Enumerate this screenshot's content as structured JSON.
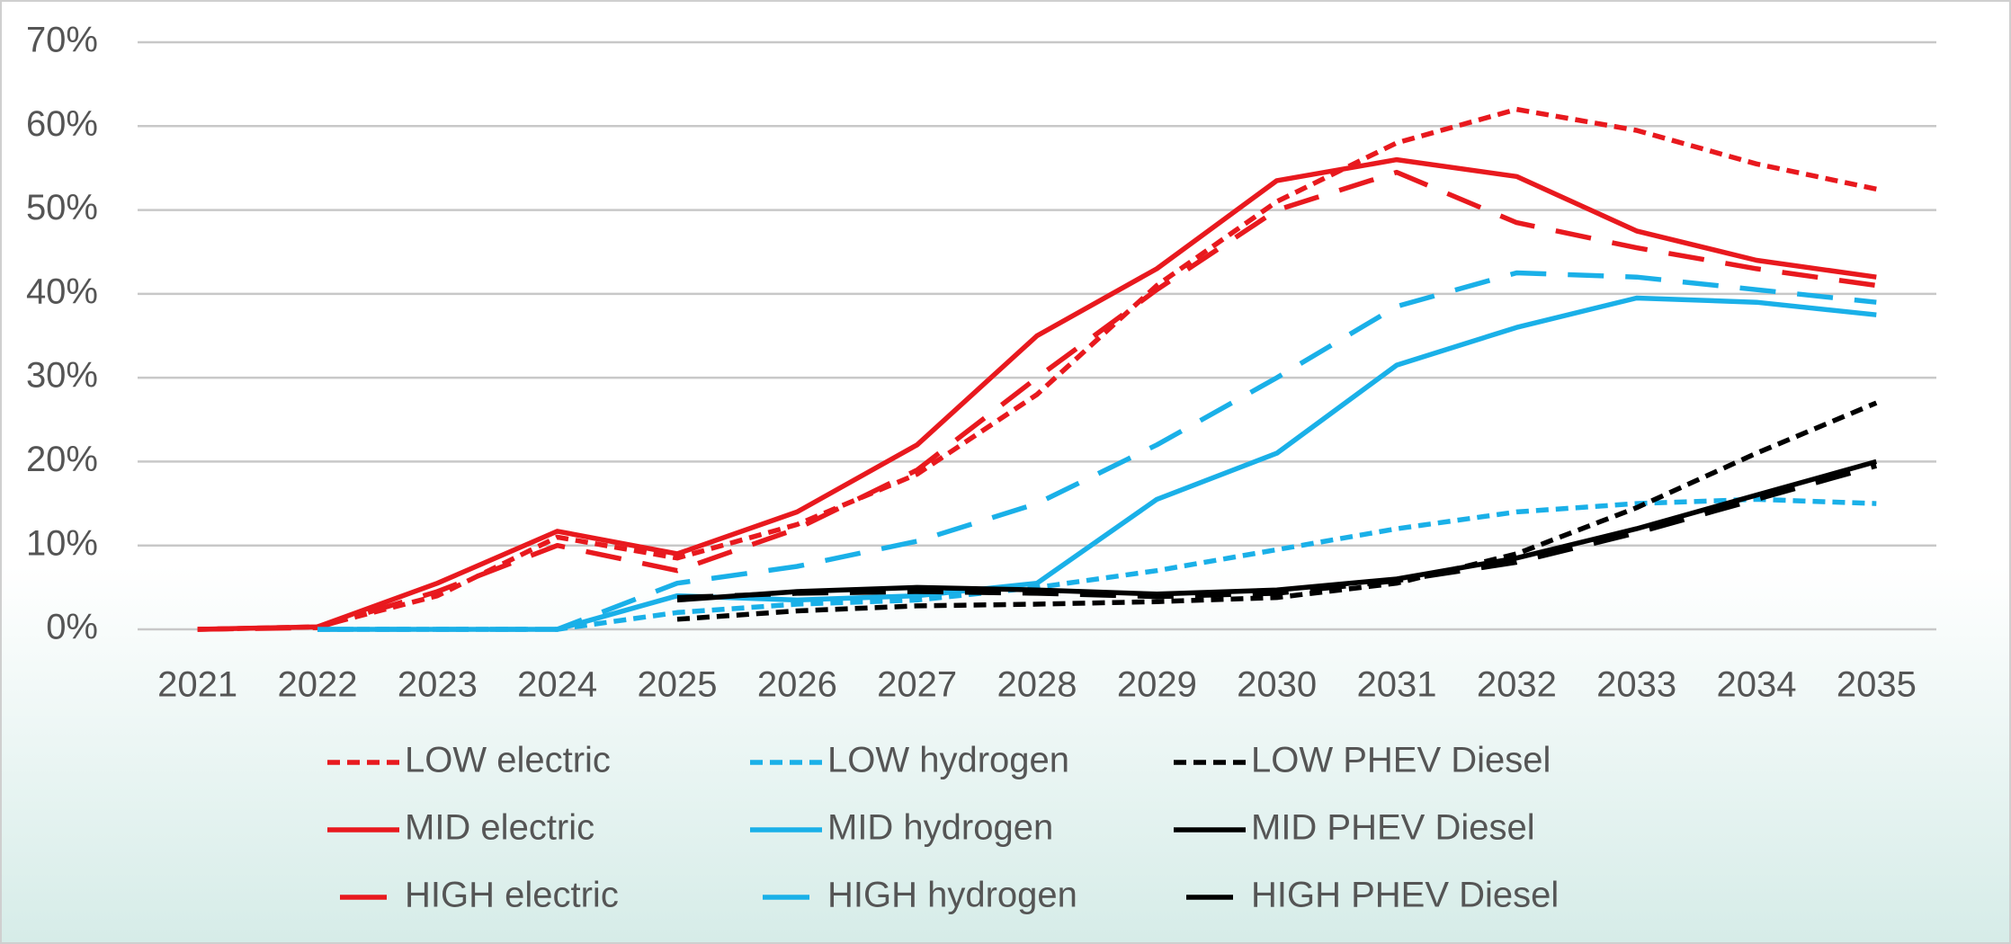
{
  "chart_data": {
    "type": "line",
    "categories": [
      "2021",
      "2022",
      "2023",
      "2024",
      "2025",
      "2026",
      "2027",
      "2028",
      "2029",
      "2030",
      "2031",
      "2032",
      "2033",
      "2034",
      "2035"
    ],
    "ylim": [
      0,
      70
    ],
    "yticks": [
      {
        "value": 0,
        "label": "0%"
      },
      {
        "value": 10,
        "label": "10%"
      },
      {
        "value": 20,
        "label": "20%"
      },
      {
        "value": 30,
        "label": "30%"
      },
      {
        "value": 40,
        "label": "40%"
      },
      {
        "value": 50,
        "label": "50%"
      },
      {
        "value": 60,
        "label": "60%"
      },
      {
        "value": 70,
        "label": "70%"
      }
    ],
    "grid": true,
    "legend": "bottom",
    "series": [
      {
        "name": "LOW electric",
        "color": "#e8191e",
        "dash": "short-dash",
        "values": [
          0,
          0.3,
          4,
          11,
          8.5,
          12.5,
          18.5,
          28,
          41,
          51,
          58,
          62,
          59.5,
          55.5,
          52.5
        ]
      },
      {
        "name": "LOW hydrogen",
        "color": "#1ab0e8",
        "dash": "short-dash",
        "values": [
          null,
          0,
          0,
          0,
          2,
          3,
          3.5,
          5,
          7,
          9.5,
          12,
          14,
          15,
          15.5,
          15
        ]
      },
      {
        "name": "LOW PHEV Diesel",
        "color": "#000000",
        "dash": "short-dash",
        "values": [
          null,
          null,
          null,
          null,
          1.2,
          2.2,
          2.8,
          3,
          3.3,
          3.8,
          5.5,
          9,
          14.5,
          21,
          27
        ]
      },
      {
        "name": "MID electric",
        "color": "#e8191e",
        "dash": "solid",
        "values": [
          0,
          0.3,
          5.5,
          11.7,
          9,
          14,
          22,
          35,
          43,
          53.5,
          56,
          54,
          47.5,
          44,
          42
        ]
      },
      {
        "name": "MID hydrogen",
        "color": "#1ab0e8",
        "dash": "solid",
        "values": [
          null,
          0,
          0,
          0,
          4,
          3.5,
          4,
          5.5,
          15.5,
          21,
          31.5,
          36,
          39.5,
          39,
          37.5
        ]
      },
      {
        "name": "MID PHEV Diesel",
        "color": "#000000",
        "dash": "solid",
        "values": [
          null,
          null,
          null,
          null,
          3.5,
          4.5,
          5,
          4.7,
          4.2,
          4.7,
          6,
          8.5,
          12,
          16,
          20
        ]
      },
      {
        "name": "HIGH electric",
        "color": "#e8191e",
        "dash": "long-dash",
        "values": [
          0,
          0.2,
          4.5,
          10,
          7,
          12,
          19,
          30,
          40.5,
          50,
          54.5,
          48.5,
          45.5,
          43,
          41
        ]
      },
      {
        "name": "HIGH hydrogen",
        "color": "#1ab0e8",
        "dash": "long-dash",
        "values": [
          null,
          0,
          0,
          0,
          5.5,
          7.5,
          10.5,
          15,
          22,
          30,
          38.5,
          42.5,
          42,
          40.5,
          39
        ]
      },
      {
        "name": "HIGH PHEV Diesel",
        "color": "#000000",
        "dash": "long-dash",
        "values": [
          null,
          null,
          null,
          null,
          3.8,
          4.3,
          4.5,
          4.3,
          3.9,
          4.3,
          5.8,
          8,
          11.5,
          15.5,
          19.5
        ]
      }
    ]
  }
}
